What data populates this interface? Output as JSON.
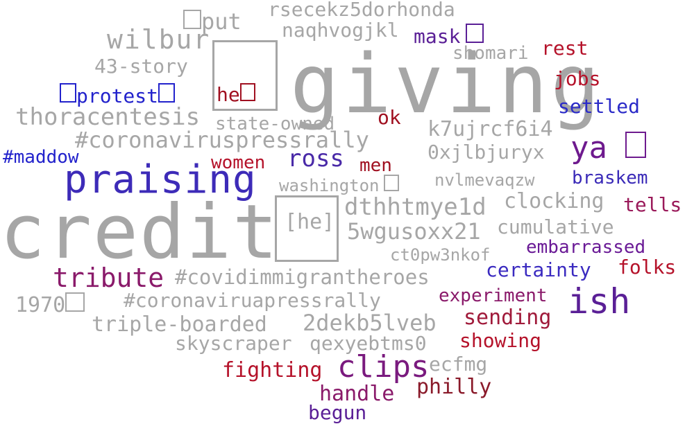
{
  "words": [
    {
      "text": "giving",
      "color": "#a6a6a6"
    },
    {
      "text": "credit",
      "color": "#a6a6a6"
    },
    {
      "text": "praising",
      "color": "#3d2bb8"
    },
    {
      "text": "ish",
      "color": "#5a1f96"
    },
    {
      "text": "ya",
      "color": "#6e1a8e"
    },
    {
      "text": "clips",
      "color": "#7a1a7e"
    },
    {
      "text": "tribute",
      "color": "#8a1a6a"
    },
    {
      "text": "ross",
      "color": "#4a2aa8"
    },
    {
      "text": "wilbur",
      "color": "#a6a6a6"
    },
    {
      "text": "43-story",
      "color": "#a6a6a6"
    },
    {
      "text": "put",
      "color": "#a6a6a6"
    },
    {
      "text": "rsecekz5dorhonda",
      "color": "#a6a6a6"
    },
    {
      "text": "naqhvogjkl",
      "color": "#a6a6a6"
    },
    {
      "text": "mask",
      "color": "#5a1f96"
    },
    {
      "text": "shomari",
      "color": "#a6a6a6"
    },
    {
      "text": "rest",
      "color": "#b5122a"
    },
    {
      "text": "jobs",
      "color": "#b5122a"
    },
    {
      "text": "protest",
      "color": "#2222cc"
    },
    {
      "text": "he",
      "color": "#a01020"
    },
    {
      "text": "settled",
      "color": "#2a2ac8"
    },
    {
      "text": "thoracentesis",
      "color": "#a6a6a6"
    },
    {
      "text": "state-owned",
      "color": "#a6a6a6"
    },
    {
      "text": "ok",
      "color": "#a01020"
    },
    {
      "text": "k7ujrcf6i4",
      "color": "#a6a6a6"
    },
    {
      "text": "#coronaviruspressrally",
      "color": "#a6a6a6"
    },
    {
      "text": "0xjlbjuryx",
      "color": "#a6a6a6"
    },
    {
      "text": "#maddow",
      "color": "#2222cc"
    },
    {
      "text": "women",
      "color": "#b5122a"
    },
    {
      "text": "men",
      "color": "#a01020"
    },
    {
      "text": "washington",
      "color": "#a6a6a6"
    },
    {
      "text": "nvlmevaqzw",
      "color": "#a6a6a6"
    },
    {
      "text": "braskem",
      "color": "#3a2ab8"
    },
    {
      "text": "[he]",
      "color": "#a6a6a6"
    },
    {
      "text": "dthhtmye1d",
      "color": "#a6a6a6"
    },
    {
      "text": "clocking",
      "color": "#a6a6a6"
    },
    {
      "text": "tells",
      "color": "#9a1a5a"
    },
    {
      "text": "5wgusoxx21",
      "color": "#a6a6a6"
    },
    {
      "text": "cumulative",
      "color": "#a6a6a6"
    },
    {
      "text": "ct0pw3nkof",
      "color": "#a6a6a6"
    },
    {
      "text": "embarrassed",
      "color": "#6a1a96"
    },
    {
      "text": "folks",
      "color": "#b5122a"
    },
    {
      "text": "certainty",
      "color": "#3a2ac0"
    },
    {
      "text": "#covidimmigrantheroes",
      "color": "#a6a6a6"
    },
    {
      "text": "1970",
      "color": "#a6a6a6"
    },
    {
      "text": "#coronaviruapressrally",
      "color": "#a6a6a6"
    },
    {
      "text": "experiment",
      "color": "#8a1a6a"
    },
    {
      "text": "triple-boarded",
      "color": "#a6a6a6"
    },
    {
      "text": "2dekb5lveb",
      "color": "#a6a6a6"
    },
    {
      "text": "sending",
      "color": "#a01a3a"
    },
    {
      "text": "skyscraper",
      "color": "#a6a6a6"
    },
    {
      "text": "qexyebtms0",
      "color": "#a6a6a6"
    },
    {
      "text": "showing",
      "color": "#b5122a"
    },
    {
      "text": "fighting",
      "color": "#b5122a"
    },
    {
      "text": "ecfmg",
      "color": "#a6a6a6"
    },
    {
      "text": "philly",
      "color": "#8a1a2a"
    },
    {
      "text": "handle",
      "color": "#8a1a6a"
    },
    {
      "text": "begun",
      "color": "#5a1f96"
    }
  ]
}
